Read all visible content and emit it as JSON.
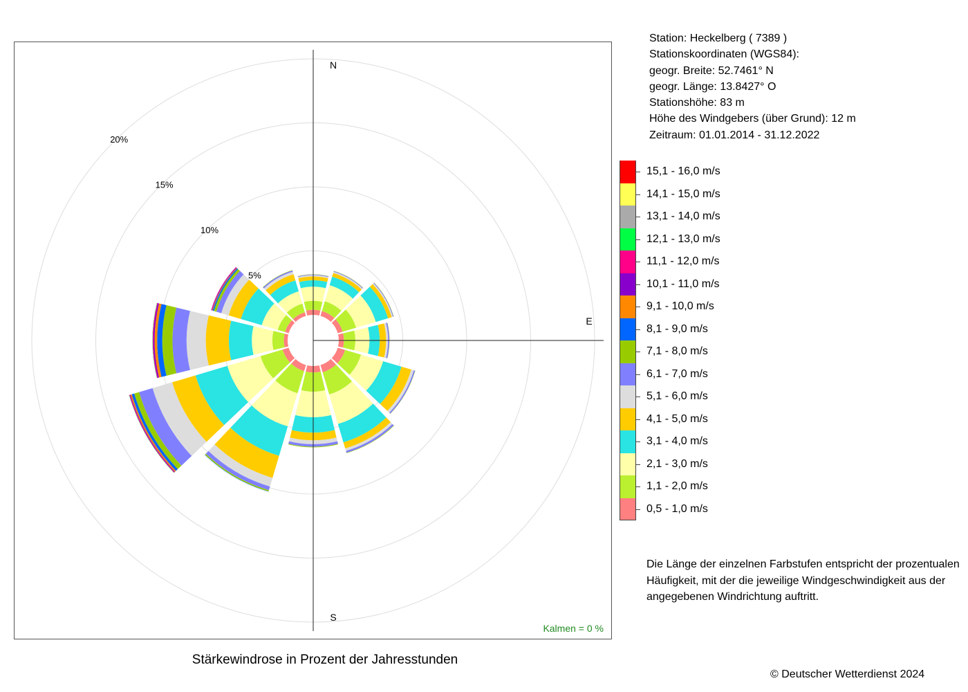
{
  "station": {
    "lines": [
      "Station:  Heckelberg  ( 7389 )",
      "Stationskoordinaten (WGS84):",
      "geogr. Breite: 52.7461° N",
      "geogr. Länge: 13.8427° O",
      "Stationshöhe: 83 m",
      "Höhe des Windgebers (über Grund): 12 m",
      "Zeitraum: 01.01.2014 - 31.12.2022"
    ]
  },
  "legend": {
    "items": [
      {
        "label": "15,1 - 16,0 m/s",
        "color": "#ff0000"
      },
      {
        "label": "14,1 - 15,0 m/s",
        "color": "#ffff55"
      },
      {
        "label": "13,1 - 14,0 m/s",
        "color": "#aaaaaa"
      },
      {
        "label": "12,1 - 13,0 m/s",
        "color": "#00ff44"
      },
      {
        "label": "11,1 - 12,0 m/s",
        "color": "#ff0088"
      },
      {
        "label": "10,1 - 11,0 m/s",
        "color": "#8800cc"
      },
      {
        "label": "9,1 - 10,0 m/s",
        "color": "#ff8800"
      },
      {
        "label": "8,1 - 9,0 m/s",
        "color": "#0066ff"
      },
      {
        "label": "7,1 - 8,0 m/s",
        "color": "#99cc00"
      },
      {
        "label": "6,1 - 7,0 m/s",
        "color": "#8080ff"
      },
      {
        "label": "5,1 - 6,0 m/s",
        "color": "#dddddd"
      },
      {
        "label": "4,1 - 5,0 m/s",
        "color": "#ffcc00"
      },
      {
        "label": "3,1 - 4,0 m/s",
        "color": "#2ae3e3"
      },
      {
        "label": "2,1 - 3,0 m/s",
        "color": "#ffffaa"
      },
      {
        "label": "1,1 - 2,0 m/s",
        "color": "#bbf030"
      },
      {
        "label": "0,5 - 1,0 m/s",
        "color": "#ff8080"
      }
    ],
    "note": "Die Länge der einzelnen Farbstufen entspricht der prozentualen Häufigkeit, mit der die jeweilige Windgeschwindigkeit aus der angegebenen Windrichtung auftritt."
  },
  "chart_title": "Stärkewindrose in Prozent der Jahresstunden",
  "calm_label": "Kalmen  =  0 %",
  "copyright": "© Deutscher Wetterdienst  2024",
  "chart_data": {
    "type": "polar-stacked-bar",
    "title": "Stärkewindrose in Prozent der Jahresstunden",
    "radial_ticks": [
      5,
      10,
      15,
      20
    ],
    "radial_tick_labels": [
      "5%",
      "10%",
      "15%",
      "20%"
    ],
    "compass_labels": [
      "N",
      "E",
      "S"
    ],
    "calms_percent": 0,
    "directions_deg": [
      0,
      30,
      60,
      90,
      120,
      150,
      180,
      210,
      240,
      270,
      300,
      330
    ],
    "speed_classes": [
      "0,5 - 1,0 m/s",
      "1,1 - 2,0 m/s",
      "2,1 - 3,0 m/s",
      "3,1 - 4,0 m/s",
      "4,1 - 5,0 m/s",
      "5,1 - 6,0 m/s",
      "6,1 - 7,0 m/s",
      "7,1 - 8,0 m/s",
      "8,1 - 9,0 m/s",
      "9,1 - 10,0 m/s",
      "10,1 - 11,0 m/s",
      "11,1 - 12,0 m/s",
      "12,1 - 13,0 m/s",
      "13,1 - 14,0 m/s",
      "14,1 - 15,0 m/s",
      "15,1 - 16,0 m/s"
    ],
    "series": [
      {
        "direction": 0,
        "values": [
          0.4,
          0.7,
          1.1,
          0.5,
          0.3,
          0.1,
          0.05,
          0.02,
          0,
          0,
          0,
          0,
          0,
          0,
          0,
          0
        ]
      },
      {
        "direction": 30,
        "values": [
          0.4,
          0.8,
          1.3,
          0.7,
          0.3,
          0.1,
          0.05,
          0.02,
          0,
          0,
          0,
          0,
          0,
          0,
          0,
          0
        ]
      },
      {
        "direction": 60,
        "values": [
          0.4,
          1.1,
          1.6,
          1.0,
          0.3,
          0.1,
          0.05,
          0.02,
          0,
          0,
          0,
          0,
          0,
          0,
          0,
          0
        ]
      },
      {
        "direction": 90,
        "values": [
          0.4,
          0.9,
          1.1,
          0.8,
          0.5,
          0.15,
          0.1,
          0.02,
          0,
          0,
          0,
          0,
          0,
          0,
          0,
          0
        ]
      },
      {
        "direction": 120,
        "values": [
          0.6,
          1.3,
          1.8,
          1.5,
          0.8,
          0.2,
          0.1,
          0.02,
          0,
          0,
          0,
          0,
          0,
          0,
          0,
          0
        ]
      },
      {
        "direction": 150,
        "values": [
          0.6,
          1.8,
          2.4,
          1.5,
          0.5,
          0.2,
          0.15,
          0.03,
          0,
          0,
          0,
          0,
          0,
          0,
          0,
          0
        ]
      },
      {
        "direction": 180,
        "values": [
          0.5,
          1.5,
          2.0,
          1.2,
          0.6,
          0.3,
          0.2,
          0.05,
          0,
          0,
          0,
          0,
          0,
          0,
          0,
          0
        ]
      },
      {
        "direction": 210,
        "values": [
          0.5,
          1.8,
          2.7,
          2.4,
          1.8,
          0.7,
          0.3,
          0.1,
          0.02,
          0,
          0,
          0,
          0,
          0,
          0,
          0
        ]
      },
      {
        "direction": 240,
        "values": [
          0.5,
          1.8,
          2.7,
          2.6,
          1.9,
          1.6,
          1.1,
          0.4,
          0.2,
          0.1,
          0.05,
          0.05,
          0.02,
          0,
          0,
          0
        ]
      },
      {
        "direction": 270,
        "values": [
          0.3,
          0.9,
          1.6,
          1.8,
          1.8,
          1.5,
          1.1,
          0.8,
          0.4,
          0.2,
          0.1,
          0.05,
          0.02,
          0,
          0,
          0
        ]
      },
      {
        "direction": 300,
        "values": [
          0.3,
          0.6,
          1.3,
          1.7,
          1.0,
          0.6,
          0.4,
          0.2,
          0.1,
          0.05,
          0.05,
          0.03,
          0,
          0,
          0,
          0
        ]
      },
      {
        "direction": 330,
        "values": [
          0.3,
          0.7,
          1.0,
          0.9,
          0.5,
          0.2,
          0.1,
          0.03,
          0,
          0,
          0,
          0,
          0,
          0,
          0,
          0
        ]
      }
    ]
  }
}
